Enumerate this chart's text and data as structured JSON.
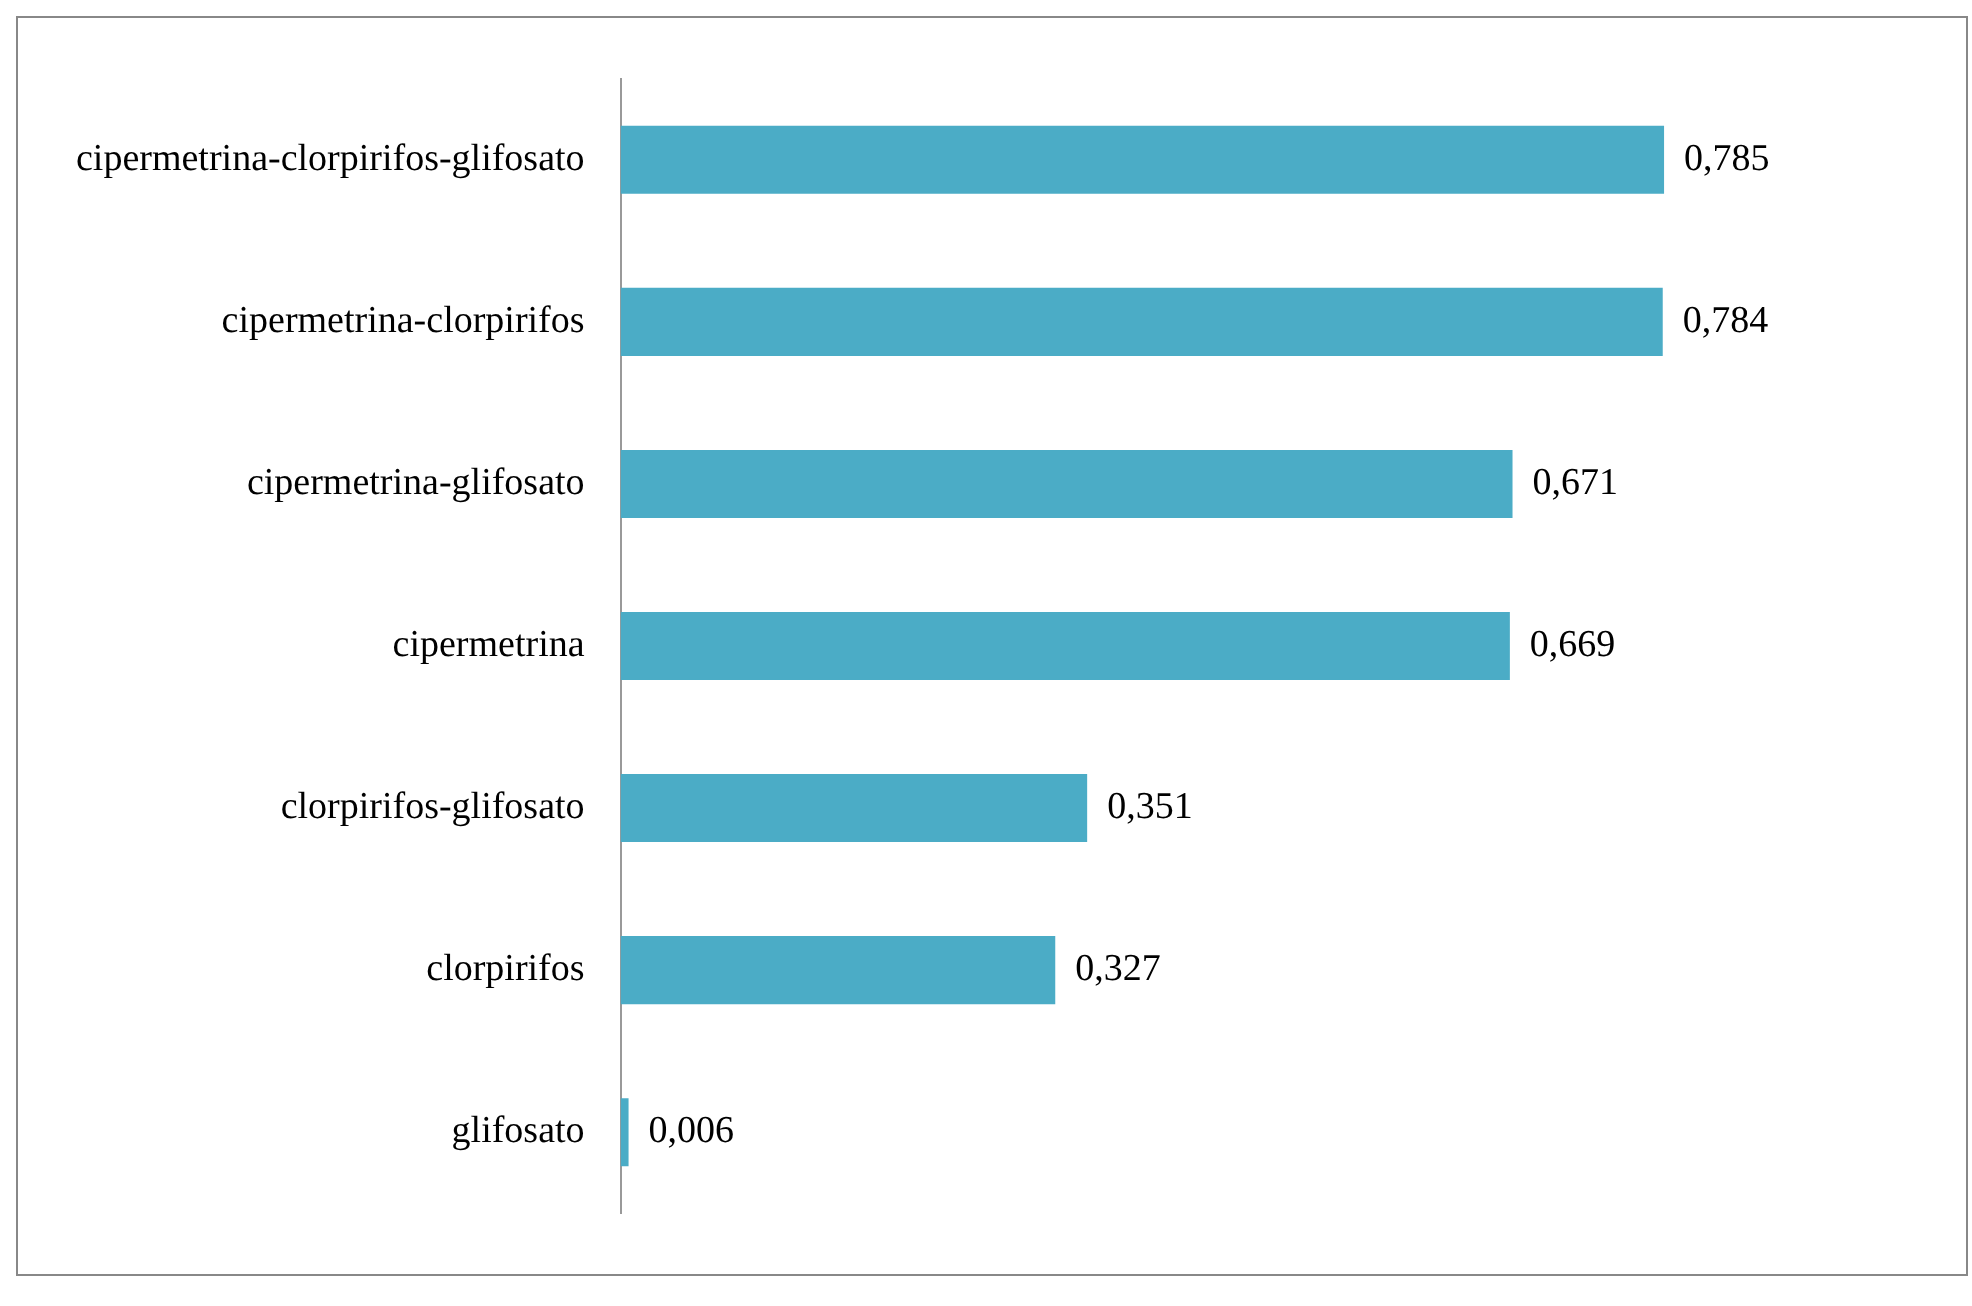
{
  "chart_data": {
    "type": "bar",
    "orientation": "horizontal",
    "categories": [
      "cipermetrina-clorpirifos-glifosato",
      "cipermetrina-clorpirifos",
      "cipermetrina-glifosato",
      "cipermetrina",
      "clorpirifos-glifosato",
      "clorpirifos",
      "glifosato"
    ],
    "values": [
      0.785,
      0.784,
      0.671,
      0.669,
      0.351,
      0.327,
      0.006
    ],
    "value_labels": [
      "0,785",
      "0,784",
      "0,671",
      "0,669",
      "0,351",
      "0,327",
      "0,006"
    ],
    "color": "#4bacc6",
    "grid": false,
    "legend": false,
    "tick_labels": "y"
  }
}
